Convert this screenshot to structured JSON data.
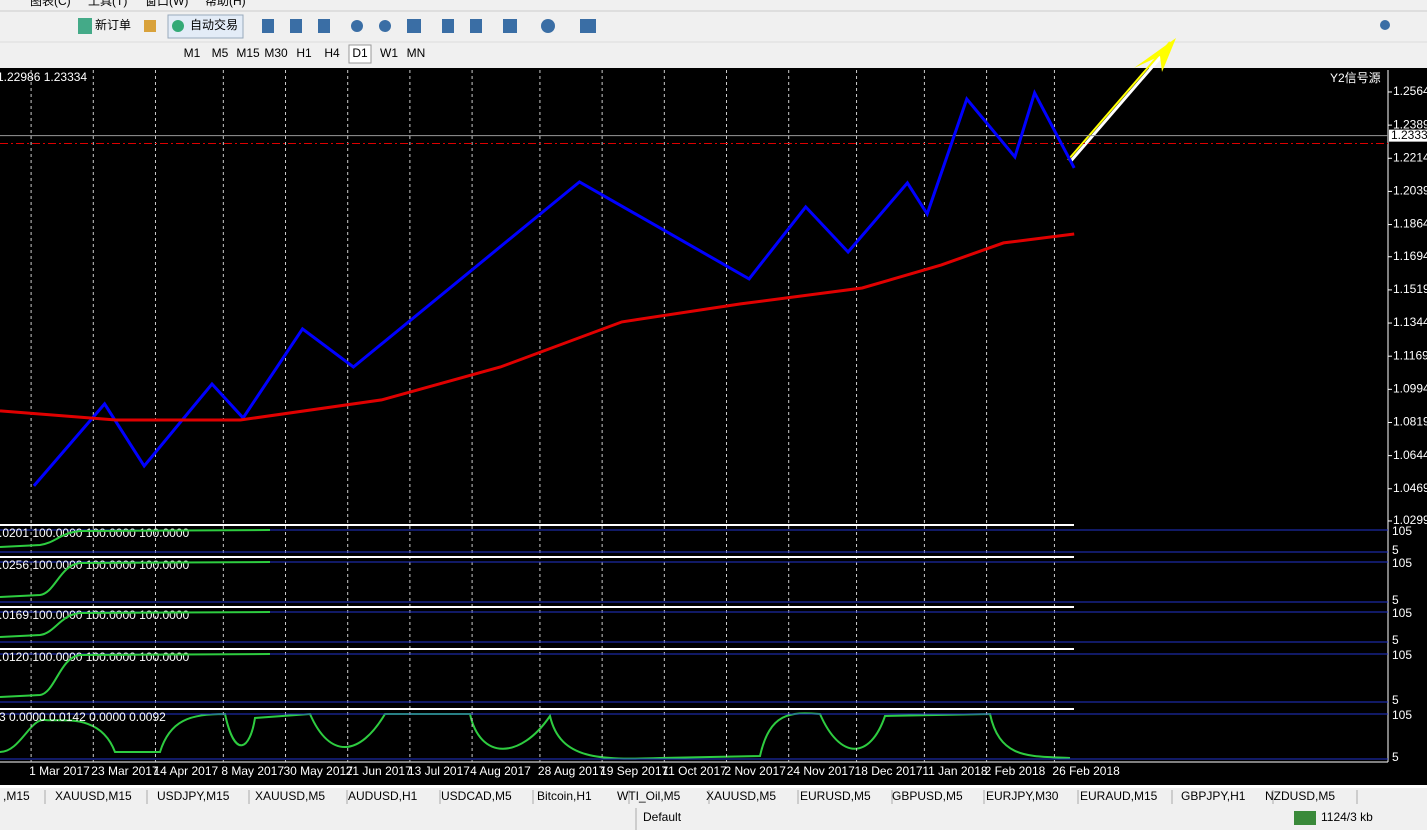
{
  "menu": [
    "图表(C)",
    "工具(T)",
    "窗口(W)",
    "帮助(H)"
  ],
  "toolbar": {
    "new_order": "新订单",
    "auto_trading": "自动交易"
  },
  "timeframes": [
    "M1",
    "M5",
    "M15",
    "M30",
    "H1",
    "H4",
    "D1",
    "W1",
    "MN"
  ],
  "chart_data": {
    "type": "line",
    "header": "1.22986 1.23334",
    "corner_label": "Y2信号源",
    "xlim": [
      "2017-02-18",
      "2018-06-24"
    ],
    "ylim": [
      1.268,
      1.0283
    ],
    "yticks": [
      {
        "value": 1.2564,
        "label": "1.25640"
      },
      {
        "value": 1.2389,
        "label": "1.23890"
      },
      {
        "value": 1.2214,
        "label": "1.22140"
      },
      {
        "value": 1.2039,
        "label": "1.20390"
      },
      {
        "value": 1.1864,
        "label": "1.18640"
      },
      {
        "value": 1.1694,
        "label": "1.16940"
      },
      {
        "value": 1.1519,
        "label": "1.15190"
      },
      {
        "value": 1.1344,
        "label": "1.13440"
      },
      {
        "value": 1.1169,
        "label": "1.11690"
      },
      {
        "value": 1.0994,
        "label": "1.09940"
      },
      {
        "value": 1.0819,
        "label": "1.08190"
      },
      {
        "value": 1.0644,
        "label": "1.06440"
      },
      {
        "value": 1.0469,
        "label": "1.04690"
      },
      {
        "value": 1.0299,
        "label": "1.02990"
      }
    ],
    "xticks": [
      {
        "value": "2017-03-01",
        "label": "1 Mar 2017"
      },
      {
        "value": "2017-03-23",
        "label": "23 Mar 2017"
      },
      {
        "value": "2017-04-14",
        "label": "14 Apr 2017"
      },
      {
        "value": "2017-05-08",
        "label": "8 May 2017"
      },
      {
        "value": "2017-05-30",
        "label": "30 May 2017"
      },
      {
        "value": "2017-06-21",
        "label": "21 Jun 2017"
      },
      {
        "value": "2017-07-13",
        "label": "13 Jul 2017"
      },
      {
        "value": "2017-08-04",
        "label": "4 Aug 2017"
      },
      {
        "value": "2017-08-28",
        "label": "28 Aug 2017"
      },
      {
        "value": "2017-09-19",
        "label": "19 Sep 2017"
      },
      {
        "value": "2017-10-11",
        "label": "11 Oct 2017"
      },
      {
        "value": "2017-11-02",
        "label": "2 Nov 2017"
      },
      {
        "value": "2017-11-24",
        "label": "24 Nov 2017"
      },
      {
        "value": "2017-12-18",
        "label": "18 Dec 2017"
      },
      {
        "value": "2018-01-11",
        "label": "11 Jan 2018"
      },
      {
        "value": "2018-02-02",
        "label": "2 Feb 2018"
      },
      {
        "value": "2018-02-26",
        "label": "26 Feb 2018"
      }
    ],
    "current_price": {
      "value": 1.23334,
      "label": "1.23334"
    },
    "price_lines": [
      1.2292
    ],
    "series": [
      {
        "color": "#0000ff",
        "x": [
          "2017-03-02",
          "2017-03-27",
          "2017-04-10",
          "2017-05-04",
          "2017-05-15",
          "2017-06-05",
          "2017-06-23",
          "2017-09-11",
          "2017-11-10",
          "2017-11-30",
          "2017-12-15",
          "2018-01-05",
          "2018-01-12",
          "2018-01-26",
          "2018-02-12",
          "2018-02-19",
          "2018-03-05"
        ],
        "values": [
          1.0484,
          1.0917,
          1.0589,
          1.1022,
          1.0843,
          1.1313,
          1.1112,
          1.2089,
          1.1577,
          1.1957,
          1.1719,
          1.2084,
          1.192,
          1.2527,
          1.2221,
          1.2559,
          1.2163
        ]
      },
      {
        "color": "#e00000",
        "x": [
          "2017-02-18",
          "2017-03-31",
          "2017-05-14",
          "2017-07-03",
          "2017-08-14",
          "2017-09-26",
          "2017-11-07",
          "2017-12-20",
          "2018-01-17",
          "2018-02-08",
          "2018-03-05"
        ],
        "values": [
          1.088,
          1.0832,
          1.0832,
          1.0938,
          1.1112,
          1.135,
          1.1445,
          1.1529,
          1.1651,
          1.1767,
          1.1814
        ]
      }
    ]
  },
  "indicators": [
    {
      "label": ".0201 100.0000 100.0000 100.0000",
      "levels": [
        "105",
        "5"
      ]
    },
    {
      "label": ".0256 100.0000 100.0000 100.0000",
      "levels": [
        "105",
        "5"
      ]
    },
    {
      "label": ".0169 100.0000 100.0000 100.0000",
      "levels": [
        "105",
        "5"
      ]
    },
    {
      "label": ".0120 100.0000 100.0000 100.0000",
      "levels": [
        "105",
        "5"
      ]
    },
    {
      "label": "3 0.0000 0.0142 0.0000 0.0092",
      "levels": [
        "105",
        "5"
      ]
    }
  ],
  "tabs": [
    ",M15",
    "XAUUSD,M15",
    "USDJPY,M15",
    "XAUUSD,M5",
    "AUDUSD,H1",
    "USDCAD,M5",
    "Bitcoin,H1",
    "WTI_Oil,M5",
    "XAUUSD,M5",
    "EURUSD,M5",
    "GBPUSD,M5",
    "EURJPY,M30",
    "EURAUD,M15",
    "GBPJPY,H1",
    "NZDUSD,M5"
  ],
  "status": {
    "profile": "Default",
    "traffic": "1124/3 kb"
  }
}
